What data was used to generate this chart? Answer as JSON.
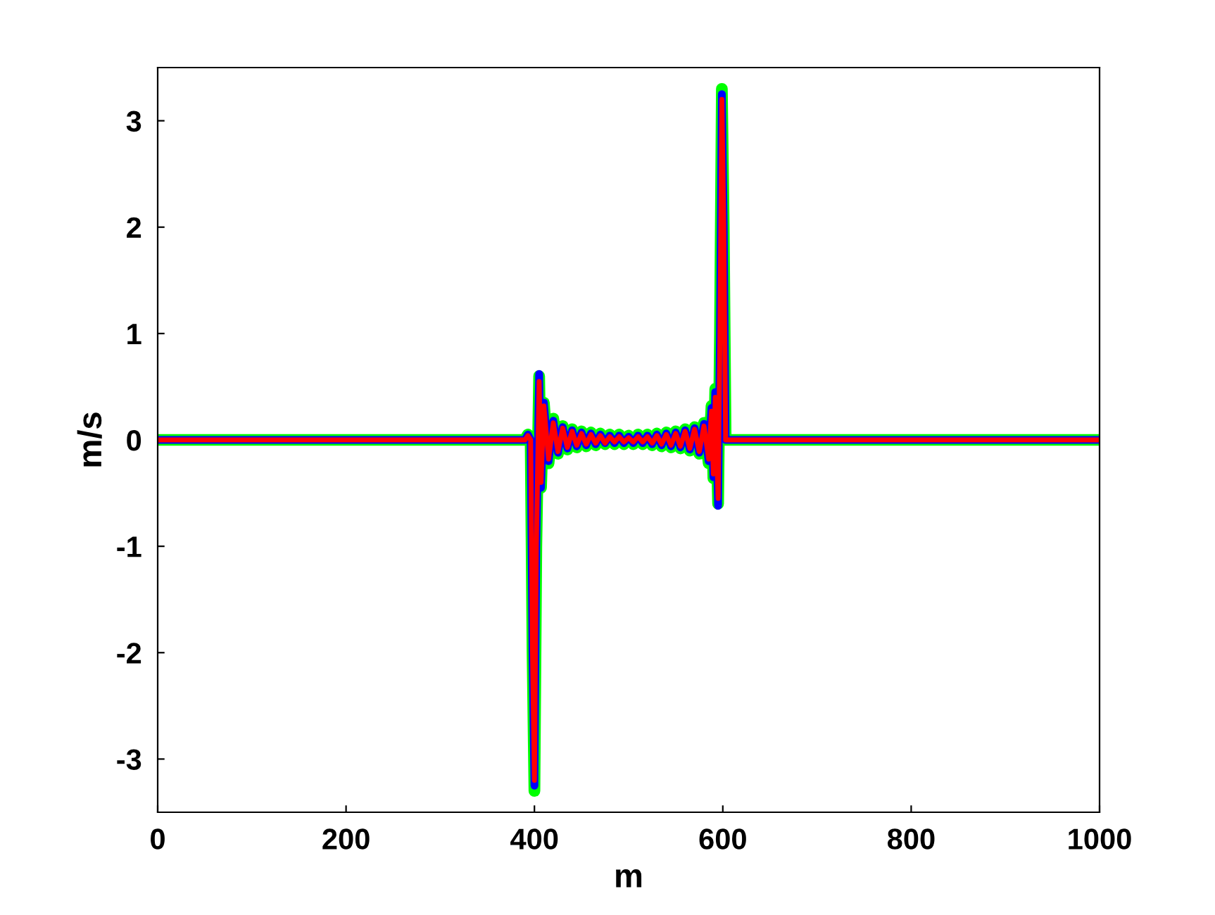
{
  "chart_data": {
    "type": "line",
    "xlabel": "m",
    "ylabel": "m/s",
    "xlim": [
      0,
      1000
    ],
    "ylim": [
      -3.5,
      3.5
    ],
    "xticks": [
      0,
      200,
      400,
      600,
      800,
      1000
    ],
    "yticks": [
      -3,
      -2,
      -1,
      0,
      1,
      2,
      3
    ],
    "grid": false,
    "legend": false,
    "marker": "none",
    "line_style": "solid",
    "x": [
      0,
      390,
      393,
      396,
      398,
      400,
      402,
      405,
      407,
      410,
      415,
      420,
      425,
      430,
      435,
      440,
      445,
      450,
      455,
      460,
      465,
      470,
      475,
      480,
      485,
      490,
      495,
      500,
      505,
      510,
      515,
      520,
      525,
      530,
      535,
      540,
      545,
      550,
      555,
      560,
      565,
      570,
      575,
      580,
      585,
      588,
      590,
      592,
      595,
      597,
      599,
      601,
      603,
      605,
      1000
    ],
    "series": [
      {
        "color": "#00ff00",
        "values": [
          0,
          0,
          0.05,
          0,
          -2.0,
          -3.3,
          -1.0,
          0.6,
          -0.45,
          0.35,
          -0.22,
          0.2,
          -0.13,
          0.13,
          -0.09,
          0.1,
          -0.07,
          0.08,
          -0.06,
          0.07,
          -0.05,
          0.06,
          -0.04,
          0.05,
          -0.04,
          0.05,
          -0.04,
          0.04,
          -0.04,
          0.05,
          -0.04,
          0.05,
          -0.05,
          0.06,
          -0.06,
          0.07,
          -0.07,
          0.08,
          -0.08,
          0.1,
          -0.1,
          0.12,
          -0.13,
          0.16,
          -0.22,
          0.32,
          -0.36,
          0.48,
          -0.6,
          1.0,
          3.3,
          2.0,
          0,
          0,
          0
        ]
      },
      {
        "color": "#0000ff",
        "values": [
          0,
          0,
          0.05,
          0,
          -2.0,
          -3.25,
          -1.0,
          0.62,
          -0.45,
          0.35,
          -0.2,
          0.18,
          -0.12,
          0.12,
          -0.08,
          0.09,
          -0.06,
          0.07,
          -0.05,
          0.06,
          -0.04,
          0.05,
          -0.03,
          0.04,
          -0.03,
          0.04,
          -0.03,
          0.03,
          -0.03,
          0.04,
          -0.03,
          0.04,
          -0.04,
          0.05,
          -0.05,
          0.06,
          -0.06,
          0.07,
          -0.07,
          0.09,
          -0.09,
          0.11,
          -0.12,
          0.15,
          -0.2,
          0.3,
          -0.35,
          0.45,
          -0.62,
          1.0,
          3.25,
          2.0,
          0,
          0,
          0
        ]
      },
      {
        "color": "#ff0000",
        "values": [
          0,
          0,
          0.04,
          0,
          -2.0,
          -3.2,
          -1.0,
          0.55,
          -0.4,
          0.32,
          -0.18,
          0.16,
          -0.11,
          0.11,
          -0.07,
          0.08,
          -0.05,
          0.06,
          -0.04,
          0.05,
          -0.03,
          0.04,
          -0.03,
          0.03,
          -0.02,
          0.03,
          -0.02,
          0.02,
          -0.02,
          0.03,
          -0.02,
          0.03,
          -0.03,
          0.04,
          -0.04,
          0.05,
          -0.05,
          0.06,
          -0.06,
          0.08,
          -0.08,
          0.1,
          -0.11,
          0.13,
          -0.18,
          0.27,
          -0.32,
          0.4,
          -0.55,
          1.0,
          3.2,
          2.0,
          0,
          0,
          0
        ]
      }
    ]
  }
}
